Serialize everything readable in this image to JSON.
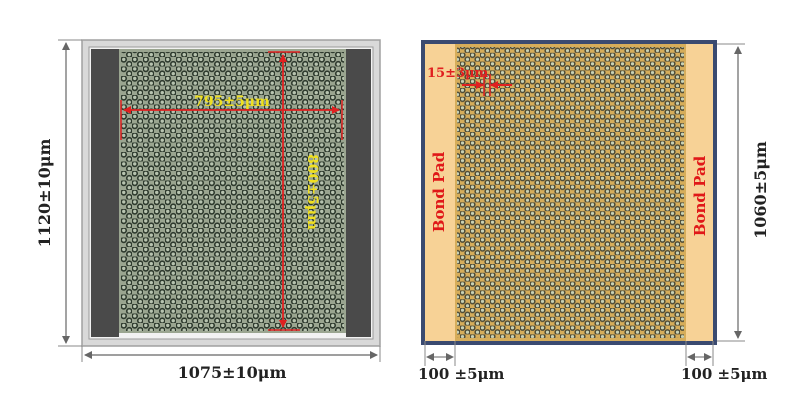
{
  "left_chip": {
    "height_label": "1120±10μm",
    "width_label": "1075±10μm",
    "array_width_label": "795±5μm",
    "array_height_label": "800±5μm"
  },
  "right_chip": {
    "height_label": "1060±5μm",
    "pitch_label": "15±3μm",
    "left_pad_label": "Bond Pad",
    "right_pad_label": "Bond Pad",
    "left_margin_label": "100 ±5μm",
    "right_margin_label": "100 ±5μm"
  },
  "colors": {
    "frame_gray": "#c8c8c8",
    "dark_side": "#4a4a4a",
    "array_green": "#9aa590",
    "dim_red": "#e02020",
    "dim_yellow": "#f0e020",
    "blue_border": "#3a4a70",
    "pad_orange": "#f7d296",
    "array_gold": "#d6ad5a",
    "pad_text_red": "#e01818"
  }
}
